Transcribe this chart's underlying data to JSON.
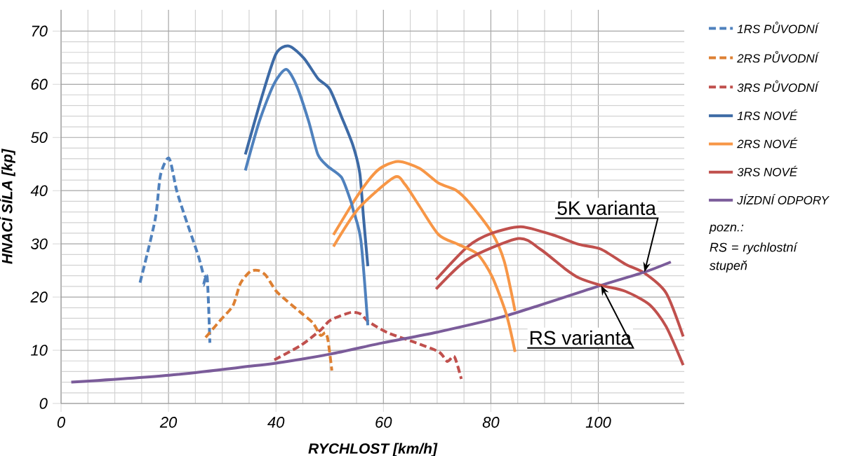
{
  "chart_data": {
    "type": "line",
    "xlabel": "RYCHLOST [km/h]",
    "ylabel": "HNACÍ SÍLA [kp]",
    "xlim": [
      0,
      116
    ],
    "ylim": [
      0,
      74
    ],
    "xticks": [
      0,
      20,
      40,
      60,
      80,
      100
    ],
    "yticks": [
      0,
      10,
      20,
      30,
      40,
      50,
      60,
      70
    ],
    "grid": true,
    "legend": "right",
    "marker": "none",
    "series": [
      {
        "name": "1RS PŮVODNÍ",
        "color": "#4f81bd",
        "line_style": "dashed",
        "x": [
          14.7,
          17.5,
          18.5,
          20.1,
          21.5,
          22.9,
          25.5,
          26.4,
          26.9,
          26.5,
          27.2,
          27.7
        ],
        "values": [
          22.7,
          34.5,
          42.9,
          46.1,
          40.1,
          35.6,
          27.9,
          24.6,
          23.7,
          22.2,
          23.7,
          11.4
        ]
      },
      {
        "name": "2RS PŮVODNÍ",
        "color": "#dd8033",
        "line_style": "dashed",
        "x": [
          26.9,
          29.7,
          32.0,
          33.4,
          35.2,
          36.7,
          38.1,
          39.9,
          41.3,
          44.6,
          46.9,
          48.3,
          49.2,
          49.7,
          50.4
        ],
        "values": [
          12.4,
          15.7,
          18.4,
          22.6,
          24.8,
          25.0,
          24.1,
          21.3,
          19.9,
          17.1,
          15.1,
          12.8,
          13.3,
          11.8,
          6.2
        ]
      },
      {
        "name": "3RS PŮVODNÍ",
        "color": "#c0504d",
        "line_style": "dashed",
        "x": [
          39.7,
          44.6,
          48.3,
          50.2,
          53.9,
          55.8,
          57.2,
          60.8,
          65.8,
          70.3,
          71.9,
          73.2,
          74.5
        ],
        "values": [
          8.2,
          10.9,
          13.8,
          15.7,
          17.1,
          16.8,
          15.4,
          13.3,
          11.5,
          9.7,
          7.9,
          8.8,
          4.6
        ]
      },
      {
        "name": "1RS NOVÉ",
        "color": "#3d6aa5",
        "line_style": "solid",
        "x": [
          34.3,
          37.3,
          40.0,
          42.4,
          45.2,
          47.8,
          50.0,
          52.2,
          54.3,
          55.6,
          56.3,
          57.1
        ],
        "values": [
          46.8,
          57.4,
          65.7,
          67.2,
          64.9,
          61.1,
          59.1,
          53.9,
          48.6,
          43.3,
          34.9,
          25.8
        ]
      },
      {
        "name": "2RS NOVÉ",
        "color": "#f79646",
        "line_style": "solid",
        "x": [
          50.7,
          55.4,
          59.0,
          62.7,
          66.7,
          70.3,
          73.5,
          76.1,
          80.2,
          82.5,
          84.5
        ],
        "values": [
          31.7,
          39.4,
          43.9,
          45.5,
          44.2,
          41.4,
          40.1,
          37.6,
          32.1,
          26.7,
          17.4
        ]
      },
      {
        "name": "3RS NOVÉ",
        "color": "#c0504d",
        "line_style": "solid",
        "x": [
          69.8,
          75.7,
          80.2,
          85.6,
          91.5,
          96.4,
          100.5,
          105.0,
          108.6,
          112.6,
          115.8
        ],
        "values": [
          23.3,
          29.5,
          32.0,
          33.2,
          31.7,
          29.9,
          29.0,
          26.2,
          24.5,
          20.8,
          12.6
        ]
      },
      {
        "name": "JÍZDNÍ ODPORY",
        "color": "#7b5c9a",
        "line_style": "solid",
        "x": [
          1.9,
          20.1,
          35.2,
          40.2,
          50.2,
          59.9,
          70.0,
          82.9,
          100.5,
          108.6,
          113.5
        ],
        "values": [
          4.0,
          5.3,
          7.0,
          7.6,
          9.3,
          11.4,
          13.4,
          16.5,
          22.2,
          24.7,
          26.6
        ]
      },
      {
        "color": "#4f81bd",
        "line_style": "solid",
        "x": [
          34.3,
          36.9,
          39.6,
          41.9,
          43.9,
          46.1,
          47.8,
          49.6,
          52.2,
          53.9,
          54.4,
          55.8,
          57.1
        ],
        "values": [
          43.8,
          53.0,
          60.0,
          62.8,
          59.6,
          53.0,
          46.8,
          44.6,
          42.5,
          38.1,
          36.3,
          30.7,
          14.7
        ]
      },
      {
        "color": "#f79646",
        "line_style": "solid",
        "x": [
          50.7,
          55.4,
          62.0,
          64.0,
          66.7,
          70.3,
          73.9,
          77.5,
          80.2,
          82.9,
          84.5
        ],
        "values": [
          29.5,
          36.7,
          42.5,
          41.2,
          37.1,
          31.7,
          29.9,
          28.1,
          23.9,
          16.7,
          9.7
        ]
      },
      {
        "color": "#c0504d",
        "line_style": "solid",
        "x": [
          69.8,
          75.7,
          85.1,
          89.2,
          93.7,
          96.4,
          100.5,
          105.0,
          109.5,
          112.6,
          115.8
        ],
        "values": [
          21.5,
          27.1,
          31.0,
          29.0,
          25.4,
          23.6,
          22.2,
          21.1,
          18.6,
          14.5,
          7.2
        ]
      }
    ],
    "annotations": [
      {
        "text": "5K varianta",
        "x": 108.6,
        "y": 24.7
      },
      {
        "text": "RS varianta",
        "x": 100.5,
        "y": 22.2
      },
      "pozn.:",
      "RS = rychlostní stupeň"
    ]
  }
}
